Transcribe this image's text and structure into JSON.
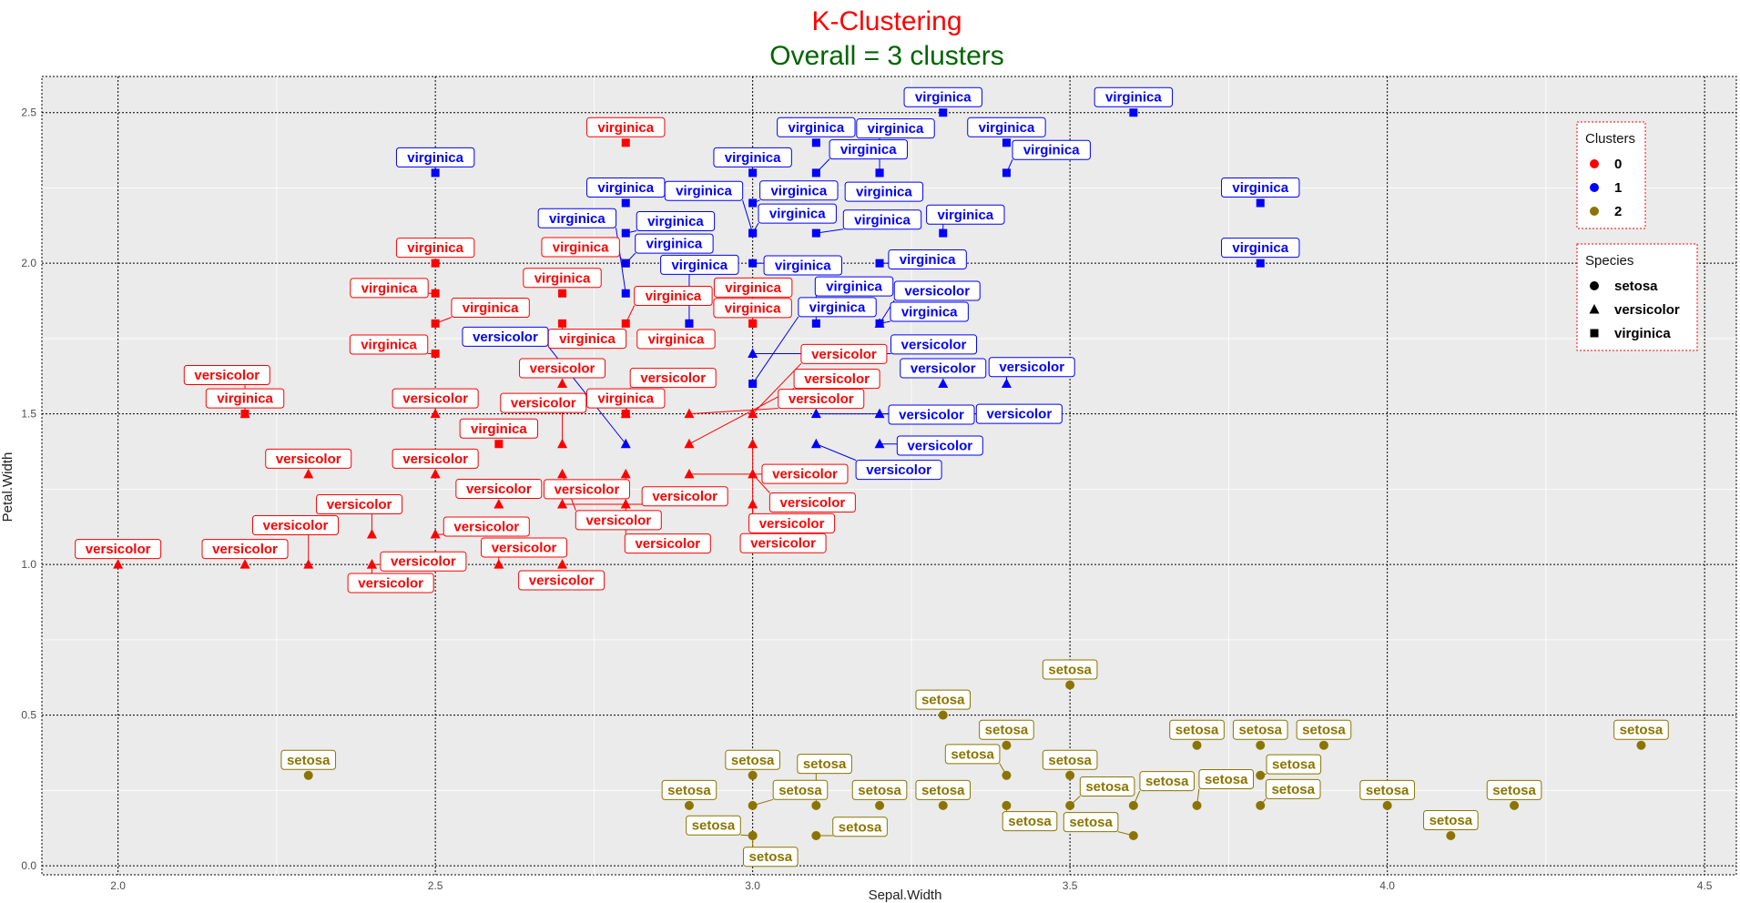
{
  "chart_data": {
    "type": "scatter",
    "title": "K-Clustering",
    "subtitle": "Overall = 3 clusters",
    "xlabel": "Sepal.Width",
    "ylabel": "Petal.Width",
    "xlim": [
      1.88,
      4.55
    ],
    "ylim": [
      -0.03,
      2.62
    ],
    "x_ticks": [
      2.0,
      2.5,
      3.0,
      3.5,
      4.0,
      4.5
    ],
    "y_ticks": [
      0.0,
      0.5,
      1.0,
      1.5,
      2.0,
      2.5
    ],
    "x_tick_labels": [
      "2.0",
      "2.5",
      "3.0",
      "3.5",
      "4.0",
      "4.5"
    ],
    "y_tick_labels": [
      "0.0",
      "0.5",
      "1.0",
      "1.5",
      "2.0",
      "2.5"
    ],
    "grid": true,
    "cluster_colors": {
      "0": "#ff0000",
      "1": "#0000ff",
      "2": "#8b7500"
    },
    "legends": [
      {
        "title": "Clusters",
        "placement": "top-right",
        "entries": [
          "0",
          "1",
          "2"
        ]
      },
      {
        "title": "Species",
        "placement": "right",
        "entries": [
          "setosa",
          "versicolor",
          "virginica"
        ]
      }
    ],
    "points": [
      {
        "x": 2.2,
        "y": 1.5,
        "c": 0,
        "s": "virginica"
      },
      {
        "x": 2.8,
        "y": 2.4,
        "c": 0,
        "s": "virginica"
      },
      {
        "x": 2.5,
        "y": 2.0,
        "c": 0,
        "s": "virginica"
      },
      {
        "x": 2.5,
        "y": 1.9,
        "c": 0,
        "s": "virginica"
      },
      {
        "x": 2.5,
        "y": 1.8,
        "c": 0,
        "s": "virginica"
      },
      {
        "x": 2.5,
        "y": 1.7,
        "c": 0,
        "s": "virginica"
      },
      {
        "x": 2.7,
        "y": 1.9,
        "c": 0,
        "s": "virginica"
      },
      {
        "x": 2.7,
        "y": 1.8,
        "c": 0,
        "s": "virginica"
      },
      {
        "x": 2.8,
        "y": 1.8,
        "c": 0,
        "s": "virginica"
      },
      {
        "x": 2.8,
        "y": 2.0,
        "c": 0,
        "s": "virginica"
      },
      {
        "x": 2.6,
        "y": 1.4,
        "c": 0,
        "s": "virginica"
      },
      {
        "x": 2.8,
        "y": 1.5,
        "c": 0,
        "s": "virginica"
      },
      {
        "x": 3.0,
        "y": 1.8,
        "c": 0,
        "s": "virginica"
      },
      {
        "x": 3.0,
        "y": 1.8,
        "c": 0,
        "s": "virginica"
      },
      {
        "x": 2.9,
        "y": 1.8,
        "c": 0,
        "s": "virginica"
      },
      {
        "x": 2.0,
        "y": 1.0,
        "c": 0,
        "s": "versicolor"
      },
      {
        "x": 2.2,
        "y": 1.0,
        "c": 0,
        "s": "versicolor"
      },
      {
        "x": 2.2,
        "y": 1.5,
        "c": 0,
        "s": "versicolor"
      },
      {
        "x": 2.3,
        "y": 1.3,
        "c": 0,
        "s": "versicolor"
      },
      {
        "x": 2.3,
        "y": 1.0,
        "c": 0,
        "s": "versicolor"
      },
      {
        "x": 2.4,
        "y": 1.1,
        "c": 0,
        "s": "versicolor"
      },
      {
        "x": 2.4,
        "y": 1.0,
        "c": 0,
        "s": "versicolor"
      },
      {
        "x": 2.4,
        "y": 1.0,
        "c": 0,
        "s": "versicolor"
      },
      {
        "x": 2.5,
        "y": 1.5,
        "c": 0,
        "s": "versicolor"
      },
      {
        "x": 2.5,
        "y": 1.3,
        "c": 0,
        "s": "versicolor"
      },
      {
        "x": 2.5,
        "y": 1.1,
        "c": 0,
        "s": "versicolor"
      },
      {
        "x": 2.6,
        "y": 1.2,
        "c": 0,
        "s": "versicolor"
      },
      {
        "x": 2.6,
        "y": 1.0,
        "c": 0,
        "s": "versicolor"
      },
      {
        "x": 2.7,
        "y": 1.6,
        "c": 0,
        "s": "versicolor"
      },
      {
        "x": 2.7,
        "y": 1.4,
        "c": 0,
        "s": "versicolor"
      },
      {
        "x": 2.7,
        "y": 1.3,
        "c": 0,
        "s": "versicolor"
      },
      {
        "x": 2.7,
        "y": 1.2,
        "c": 0,
        "s": "versicolor"
      },
      {
        "x": 2.7,
        "y": 1.0,
        "c": 0,
        "s": "versicolor"
      },
      {
        "x": 2.8,
        "y": 1.5,
        "c": 0,
        "s": "versicolor"
      },
      {
        "x": 2.8,
        "y": 1.3,
        "c": 0,
        "s": "versicolor"
      },
      {
        "x": 2.8,
        "y": 1.2,
        "c": 0,
        "s": "versicolor"
      },
      {
        "x": 2.9,
        "y": 1.5,
        "c": 0,
        "s": "versicolor"
      },
      {
        "x": 2.9,
        "y": 1.4,
        "c": 0,
        "s": "versicolor"
      },
      {
        "x": 2.9,
        "y": 1.3,
        "c": 0,
        "s": "versicolor"
      },
      {
        "x": 3.0,
        "y": 1.5,
        "c": 0,
        "s": "versicolor"
      },
      {
        "x": 3.0,
        "y": 1.4,
        "c": 0,
        "s": "versicolor"
      },
      {
        "x": 3.0,
        "y": 1.3,
        "c": 0,
        "s": "versicolor"
      },
      {
        "x": 3.0,
        "y": 1.2,
        "c": 0,
        "s": "versicolor"
      },
      {
        "x": 2.5,
        "y": 2.3,
        "c": 1,
        "s": "virginica"
      },
      {
        "x": 2.8,
        "y": 2.2,
        "c": 1,
        "s": "virginica"
      },
      {
        "x": 2.8,
        "y": 2.1,
        "c": 1,
        "s": "virginica"
      },
      {
        "x": 2.8,
        "y": 2.0,
        "c": 1,
        "s": "virginica"
      },
      {
        "x": 2.8,
        "y": 1.9,
        "c": 1,
        "s": "virginica"
      },
      {
        "x": 2.9,
        "y": 1.8,
        "c": 1,
        "s": "virginica"
      },
      {
        "x": 3.0,
        "y": 2.3,
        "c": 1,
        "s": "virginica"
      },
      {
        "x": 3.0,
        "y": 2.2,
        "c": 1,
        "s": "virginica"
      },
      {
        "x": 3.0,
        "y": 2.1,
        "c": 1,
        "s": "virginica"
      },
      {
        "x": 3.0,
        "y": 2.1,
        "c": 1,
        "s": "virginica"
      },
      {
        "x": 3.0,
        "y": 2.0,
        "c": 1,
        "s": "virginica"
      },
      {
        "x": 3.0,
        "y": 1.6,
        "c": 1,
        "s": "virginica"
      },
      {
        "x": 3.1,
        "y": 2.4,
        "c": 1,
        "s": "virginica"
      },
      {
        "x": 3.1,
        "y": 2.3,
        "c": 1,
        "s": "virginica"
      },
      {
        "x": 3.1,
        "y": 2.1,
        "c": 1,
        "s": "virginica"
      },
      {
        "x": 3.1,
        "y": 1.8,
        "c": 1,
        "s": "virginica"
      },
      {
        "x": 3.2,
        "y": 2.3,
        "c": 1,
        "s": "virginica"
      },
      {
        "x": 3.2,
        "y": 2.3,
        "c": 1,
        "s": "virginica"
      },
      {
        "x": 3.2,
        "y": 2.0,
        "c": 1,
        "s": "virginica"
      },
      {
        "x": 3.2,
        "y": 1.8,
        "c": 1,
        "s": "virginica"
      },
      {
        "x": 3.3,
        "y": 2.5,
        "c": 1,
        "s": "virginica"
      },
      {
        "x": 3.3,
        "y": 2.1,
        "c": 1,
        "s": "virginica"
      },
      {
        "x": 3.4,
        "y": 2.4,
        "c": 1,
        "s": "virginica"
      },
      {
        "x": 3.4,
        "y": 2.3,
        "c": 1,
        "s": "virginica"
      },
      {
        "x": 3.6,
        "y": 2.5,
        "c": 1,
        "s": "virginica"
      },
      {
        "x": 3.8,
        "y": 2.2,
        "c": 1,
        "s": "virginica"
      },
      {
        "x": 3.8,
        "y": 2.0,
        "c": 1,
        "s": "virginica"
      },
      {
        "x": 2.8,
        "y": 1.4,
        "c": 1,
        "s": "versicolor"
      },
      {
        "x": 3.0,
        "y": 1.7,
        "c": 1,
        "s": "versicolor"
      },
      {
        "x": 3.1,
        "y": 1.5,
        "c": 1,
        "s": "versicolor"
      },
      {
        "x": 3.1,
        "y": 1.4,
        "c": 1,
        "s": "versicolor"
      },
      {
        "x": 3.2,
        "y": 1.5,
        "c": 1,
        "s": "versicolor"
      },
      {
        "x": 3.2,
        "y": 1.4,
        "c": 1,
        "s": "versicolor"
      },
      {
        "x": 3.2,
        "y": 1.8,
        "c": 1,
        "s": "versicolor"
      },
      {
        "x": 3.3,
        "y": 1.6,
        "c": 1,
        "s": "versicolor"
      },
      {
        "x": 3.4,
        "y": 1.6,
        "c": 1,
        "s": "versicolor"
      },
      {
        "x": 2.3,
        "y": 0.3,
        "c": 2,
        "s": "setosa"
      },
      {
        "x": 2.9,
        "y": 0.2,
        "c": 2,
        "s": "setosa"
      },
      {
        "x": 3.0,
        "y": 0.3,
        "c": 2,
        "s": "setosa"
      },
      {
        "x": 3.0,
        "y": 0.2,
        "c": 2,
        "s": "setosa"
      },
      {
        "x": 3.0,
        "y": 0.1,
        "c": 2,
        "s": "setosa"
      },
      {
        "x": 3.0,
        "y": 0.1,
        "c": 2,
        "s": "setosa"
      },
      {
        "x": 3.1,
        "y": 0.2,
        "c": 2,
        "s": "setosa"
      },
      {
        "x": 3.1,
        "y": 0.1,
        "c": 2,
        "s": "setosa"
      },
      {
        "x": 3.2,
        "y": 0.2,
        "c": 2,
        "s": "setosa"
      },
      {
        "x": 3.3,
        "y": 0.5,
        "c": 2,
        "s": "setosa"
      },
      {
        "x": 3.3,
        "y": 0.2,
        "c": 2,
        "s": "setosa"
      },
      {
        "x": 3.4,
        "y": 0.4,
        "c": 2,
        "s": "setosa"
      },
      {
        "x": 3.4,
        "y": 0.3,
        "c": 2,
        "s": "setosa"
      },
      {
        "x": 3.4,
        "y": 0.2,
        "c": 2,
        "s": "setosa"
      },
      {
        "x": 3.5,
        "y": 0.6,
        "c": 2,
        "s": "setosa"
      },
      {
        "x": 3.5,
        "y": 0.3,
        "c": 2,
        "s": "setosa"
      },
      {
        "x": 3.5,
        "y": 0.2,
        "c": 2,
        "s": "setosa"
      },
      {
        "x": 3.6,
        "y": 0.2,
        "c": 2,
        "s": "setosa"
      },
      {
        "x": 3.6,
        "y": 0.1,
        "c": 2,
        "s": "setosa"
      },
      {
        "x": 3.7,
        "y": 0.4,
        "c": 2,
        "s": "setosa"
      },
      {
        "x": 3.7,
        "y": 0.2,
        "c": 2,
        "s": "setosa"
      },
      {
        "x": 3.8,
        "y": 0.4,
        "c": 2,
        "s": "setosa"
      },
      {
        "x": 3.8,
        "y": 0.3,
        "c": 2,
        "s": "setosa"
      },
      {
        "x": 3.8,
        "y": 0.2,
        "c": 2,
        "s": "setosa"
      },
      {
        "x": 3.9,
        "y": 0.4,
        "c": 2,
        "s": "setosa"
      },
      {
        "x": 4.0,
        "y": 0.2,
        "c": 2,
        "s": "setosa"
      },
      {
        "x": 4.1,
        "y": 0.1,
        "c": 2,
        "s": "setosa"
      },
      {
        "x": 4.2,
        "y": 0.2,
        "c": 2,
        "s": "setosa"
      },
      {
        "x": 4.4,
        "y": 0.4,
        "c": 2,
        "s": "setosa"
      }
    ]
  }
}
